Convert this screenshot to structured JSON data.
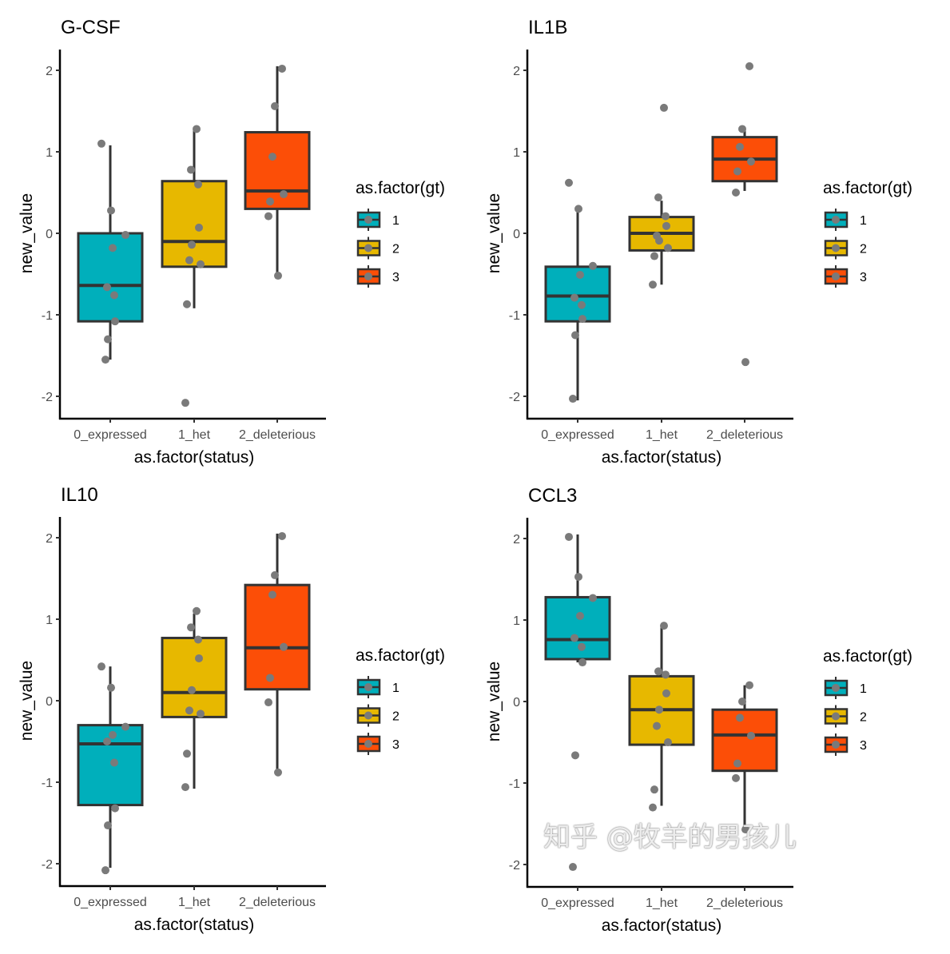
{
  "colors": {
    "1": "#00AFBB",
    "2": "#E7B800",
    "3": "#FC4E07",
    "point": "#7a7a7a",
    "line": "#333333"
  },
  "chart_data": [
    {
      "type": "box",
      "title": "G-CSF",
      "xlabel": "as.factor(status)",
      "ylabel": "new_value",
      "categories": [
        "0_expressed",
        "1_het",
        "2_deleterious"
      ],
      "yticks": [
        -2,
        -1,
        0,
        1,
        2
      ],
      "ylim": [
        -2.3,
        2.25
      ],
      "legend": {
        "title": "as.factor(gt)",
        "entries": [
          "1",
          "2",
          "3"
        ],
        "placement": "right"
      },
      "boxes": [
        {
          "gt": "1",
          "q1": -1.08,
          "median": -0.64,
          "q3": 0.0,
          "whisker_low": -1.55,
          "whisker_high": 1.08,
          "points": [
            1.1,
            0.28,
            -0.02,
            -0.18,
            -0.66,
            -0.76,
            -1.08,
            -1.3,
            -1.55
          ]
        },
        {
          "gt": "2",
          "q1": -0.41,
          "median": -0.1,
          "q3": 0.64,
          "whisker_low": -0.92,
          "whisker_high": 1.27,
          "points": [
            1.28,
            0.78,
            0.6,
            0.07,
            -0.14,
            -0.33,
            -0.38,
            -0.87,
            -2.08
          ]
        },
        {
          "gt": "3",
          "q1": 0.3,
          "median": 0.52,
          "q3": 1.24,
          "whisker_low": -0.52,
          "whisker_high": 2.05,
          "points": [
            2.02,
            1.56,
            0.94,
            0.48,
            0.39,
            0.21,
            -0.52
          ]
        }
      ]
    },
    {
      "type": "box",
      "title": "IL1B",
      "xlabel": "as.factor(status)",
      "ylabel": "new_value",
      "categories": [
        "0_expressed",
        "1_het",
        "2_deleterious"
      ],
      "yticks": [
        -2,
        -1,
        0,
        1,
        2
      ],
      "ylim": [
        -2.3,
        2.25
      ],
      "legend": {
        "title": "as.factor(gt)",
        "entries": [
          "1",
          "2",
          "3"
        ],
        "placement": "right"
      },
      "boxes": [
        {
          "gt": "1",
          "q1": -1.08,
          "median": -0.77,
          "q3": -0.41,
          "whisker_low": -2.05,
          "whisker_high": 0.3,
          "points": [
            0.62,
            0.3,
            -0.4,
            -0.51,
            -0.79,
            -0.88,
            -1.05,
            -1.25,
            -2.03
          ]
        },
        {
          "gt": "2",
          "q1": -0.21,
          "median": 0.0,
          "q3": 0.2,
          "whisker_low": -0.63,
          "whisker_high": 0.4,
          "points": [
            1.54,
            0.44,
            0.21,
            0.09,
            -0.09,
            -0.03,
            -0.18,
            -0.28,
            -0.63
          ]
        },
        {
          "gt": "3",
          "q1": 0.64,
          "median": 0.91,
          "q3": 1.18,
          "whisker_low": 0.52,
          "whisker_high": 1.28,
          "points": [
            2.05,
            1.28,
            1.06,
            0.88,
            0.76,
            0.5,
            -1.58
          ]
        }
      ]
    },
    {
      "type": "box",
      "title": "IL10",
      "xlabel": "as.factor(status)",
      "ylabel": "new_value",
      "categories": [
        "0_expressed",
        "1_het",
        "2_deleterious"
      ],
      "yticks": [
        -2,
        -1,
        0,
        1,
        2
      ],
      "ylim": [
        -2.3,
        2.25
      ],
      "legend": {
        "title": "as.factor(gt)",
        "entries": [
          "1",
          "2",
          "3"
        ],
        "placement": "right"
      },
      "boxes": [
        {
          "gt": "1",
          "q1": -1.28,
          "median": -0.53,
          "q3": -0.3,
          "whisker_low": -2.05,
          "whisker_high": 0.42,
          "points": [
            0.42,
            0.16,
            -0.32,
            -0.42,
            -0.5,
            -0.76,
            -1.32,
            -1.53,
            -2.08
          ]
        },
        {
          "gt": "2",
          "q1": -0.2,
          "median": 0.1,
          "q3": 0.77,
          "whisker_low": -1.08,
          "whisker_high": 1.07,
          "points": [
            1.1,
            0.9,
            0.75,
            0.52,
            0.13,
            -0.12,
            -0.16,
            -0.65,
            -1.06
          ]
        },
        {
          "gt": "3",
          "q1": 0.14,
          "median": 0.65,
          "q3": 1.42,
          "whisker_low": -0.9,
          "whisker_high": 2.05,
          "points": [
            2.02,
            1.54,
            1.3,
            0.66,
            0.28,
            -0.02,
            -0.88
          ]
        }
      ]
    },
    {
      "type": "box",
      "title": "CCL3",
      "xlabel": "as.factor(status)",
      "ylabel": "new_value",
      "categories": [
        "0_expressed",
        "1_het",
        "2_deleterious"
      ],
      "yticks": [
        -2,
        -1,
        0,
        1,
        2
      ],
      "ylim": [
        -2.3,
        2.25
      ],
      "legend": {
        "title": "as.factor(gt)",
        "entries": [
          "1",
          "2",
          "3"
        ],
        "placement": "right"
      },
      "boxes": [
        {
          "gt": "1",
          "q1": 0.52,
          "median": 0.76,
          "q3": 1.28,
          "whisker_low": 0.48,
          "whisker_high": 2.05,
          "points": [
            2.02,
            1.53,
            1.27,
            1.05,
            0.78,
            0.67,
            0.48,
            -0.66,
            -2.03
          ]
        },
        {
          "gt": "2",
          "q1": -0.53,
          "median": -0.1,
          "q3": 0.31,
          "whisker_low": -1.28,
          "whisker_high": 0.92,
          "points": [
            0.93,
            0.37,
            0.33,
            0.1,
            -0.1,
            -0.3,
            -0.5,
            -1.08,
            -1.3
          ]
        },
        {
          "gt": "3",
          "q1": -0.85,
          "median": -0.41,
          "q3": -0.1,
          "whisker_low": -1.55,
          "whisker_high": 0.2,
          "points": [
            0.2,
            0.0,
            -0.2,
            -0.42,
            -0.76,
            -0.94,
            -1.57
          ]
        }
      ]
    }
  ],
  "watermark": "知乎 @牧羊的男孩儿"
}
